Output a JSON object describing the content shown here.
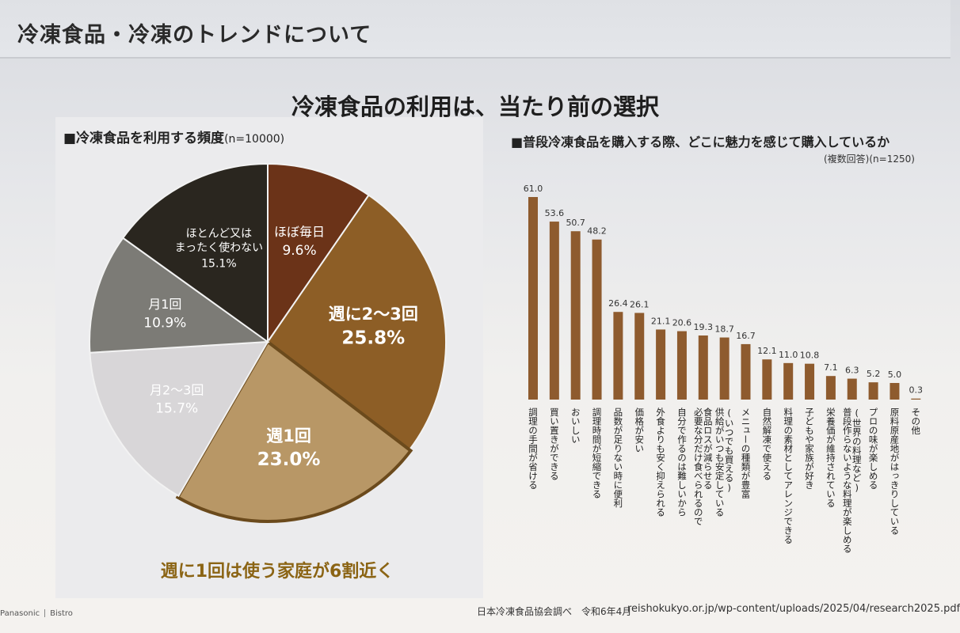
{
  "header": {
    "section_title": "冷凍食品・冷凍のトレンドについて",
    "headline": "冷凍食品の利用は、当たり前の選択"
  },
  "colors": {
    "pie_daily": "#6b3318",
    "pie_2_3_week": "#8d5e26",
    "pie_weekly": "#b89766",
    "pie_2_3_month": "#d8d6d8",
    "pie_monthly": "#7c7b76",
    "pie_rarely": "#2a261f",
    "bar": "#8e5b2e",
    "caption": "#8b6414"
  },
  "chart_data": [
    {
      "type": "pie",
      "title": "■冷凍食品を利用する頻度",
      "subtitle": "(n=10000)",
      "slices": [
        {
          "label": "ほぼ毎日",
          "value": 9.6,
          "value_label": "9.6%",
          "color_key": "pie_daily",
          "text_color": "#ffffff"
        },
        {
          "label": "週に2～3回",
          "value": 25.8,
          "value_label": "25.8%",
          "color_key": "pie_2_3_week",
          "text_color": "#ffffff"
        },
        {
          "label": "週1回",
          "value": 23.0,
          "value_label": "23.0%",
          "color_key": "pie_weekly",
          "text_color": "#ffffff",
          "highlight": true
        },
        {
          "label": "月2～3回",
          "value": 15.7,
          "value_label": "15.7%",
          "color_key": "pie_2_3_month",
          "text_color": "#ffffff"
        },
        {
          "label": "月1回",
          "value": 10.9,
          "value_label": "10.9%",
          "color_key": "pie_monthly",
          "text_color": "#ffffff"
        },
        {
          "label": "ほとんど又は\nまったく使わない",
          "value": 15.1,
          "value_label": "15.1%",
          "color_key": "pie_rarely",
          "text_color": "#ffffff"
        }
      ],
      "caption": "週に1回は使う家庭が6割近く"
    },
    {
      "type": "bar",
      "title": "■普段冷凍食品を購入する際、どこに魅力を感じて購入しているか",
      "subtitle": "(複数回答)(n=1250)",
      "ylim": [
        0,
        65
      ],
      "grid": false,
      "categories": [
        "調理の手間が省ける",
        "買い置きができる",
        "おいしい",
        "調理時間が短縮できる",
        "品数が足りない時に便利",
        "価格が安い",
        "外食よりも安く抑えられる",
        "自分で作るのは難しいから",
        "必要な分だけ食べられるので\n食品ロスが減らせる",
        "供給がいつも安定している\n(いつでも買える)",
        "メニューの種類が豊富",
        "自然解凍で使える",
        "料理の素材としてアレンジできる",
        "子どもや家族が好き",
        "栄養価が維持されている",
        "普段作らないような料理が楽しめる\n(世界の料理など)",
        "プロの味が楽しめる",
        "原料原産地がはっきりしている",
        "その他"
      ],
      "values": [
        61.0,
        53.6,
        50.7,
        48.2,
        26.4,
        26.1,
        21.1,
        20.6,
        19.3,
        18.7,
        16.7,
        12.1,
        11.0,
        10.8,
        7.1,
        6.3,
        5.2,
        5.0,
        0.3
      ],
      "value_labels": [
        "61.0",
        "53.6",
        "50.7",
        "48.2",
        "26.4",
        "26.1",
        "21.1",
        "20.6",
        "19.3",
        "18.7",
        "16.7",
        "12.1",
        "11.0",
        "10.8",
        "7.1",
        "6.3",
        "5.2",
        "5.0",
        "0.3"
      ]
    }
  ],
  "footer": {
    "brand": "Panasonic",
    "brand2": "Bistro",
    "source": "日本冷凍食品協会調べ　令和6年4月",
    "url": "reishokukyo.or.jp/wp-content/uploads/2025/04/research2025.pdf"
  }
}
